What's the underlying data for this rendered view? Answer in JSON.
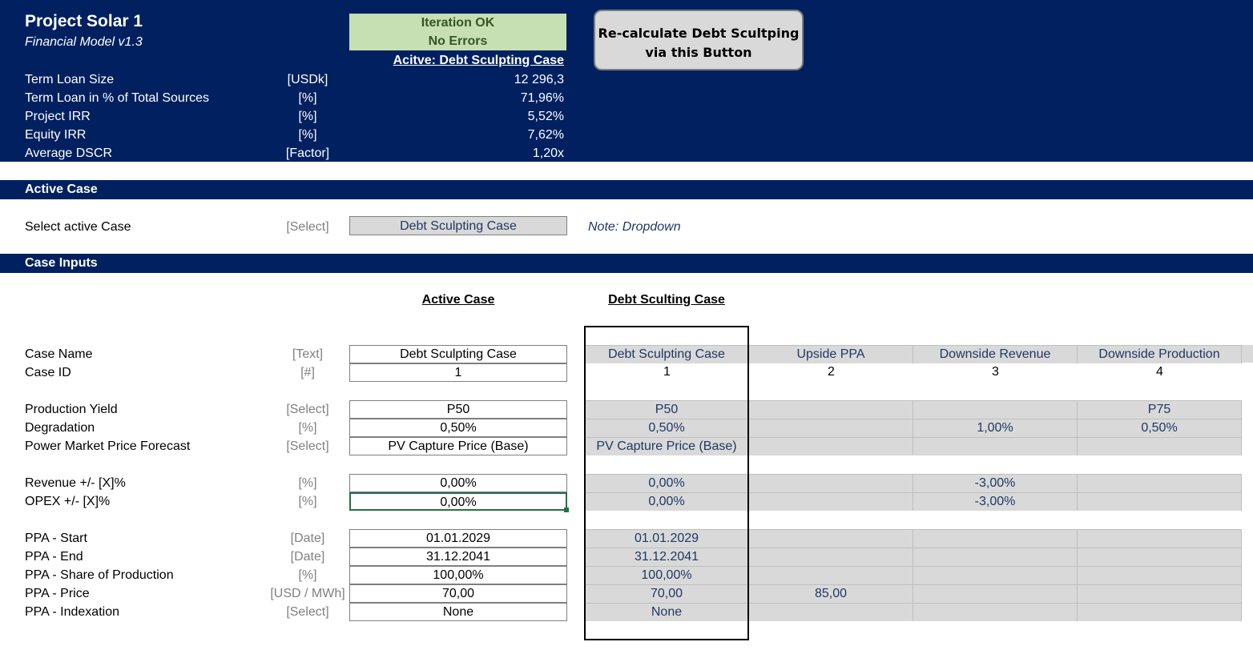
{
  "header": {
    "title": "Project Solar 1",
    "subtitle": "Financial Model v1.3",
    "status_line1": "Iteration OK",
    "status_line2": "No Errors",
    "active_label": "Acitve: Debt Sculpting Case",
    "button_label_line1": "Re-calculate Debt Scultping",
    "button_label_line2": "via this Button",
    "metrics": [
      {
        "label": "Term Loan Size",
        "unit": "[USDk]",
        "value": "12 296,3"
      },
      {
        "label": "Term Loan in % of Total Sources",
        "unit": "[%]",
        "value": "71,96%"
      },
      {
        "label": "Project IRR",
        "unit": "[%]",
        "value": "5,52%"
      },
      {
        "label": "Equity IRR",
        "unit": "[%]",
        "value": "7,62%"
      },
      {
        "label": "Average DSCR",
        "unit": "[Factor]",
        "value": "1,20x"
      }
    ]
  },
  "active_case": {
    "section_title": "Active Case",
    "select_label": "Select active Case",
    "select_unit": "[Select]",
    "selected_value": "Debt Sculpting Case",
    "note": "Note: Dropdown"
  },
  "case_inputs": {
    "section_title": "Case Inputs",
    "col_active_header": "Active Case",
    "col_debt_header": "Debt Sculting Case",
    "rows": [
      {
        "label": "Case Name",
        "unit": "[Text]",
        "active": "Debt Sculpting Case",
        "c1": "Debt Sculpting Case",
        "c2": "Upside PPA",
        "c3": "Downside Revenue",
        "c4": "Downside Production"
      },
      {
        "label": "Case ID",
        "unit": "[#]",
        "active": "1",
        "c1": "1",
        "c2": "2",
        "c3": "3",
        "c4": "4"
      },
      {
        "label": "Production Yield",
        "unit": "[Select]",
        "active": "P50",
        "c1": "P50",
        "c2": "",
        "c3": "",
        "c4": "P75"
      },
      {
        "label": "Degradation",
        "unit": "[%]",
        "active": "0,50%",
        "c1": "0,50%",
        "c2": "",
        "c3": "1,00%",
        "c4": "0,50%"
      },
      {
        "label": "Power Market Price Forecast",
        "unit": "[Select]",
        "active": "PV Capture Price (Base)",
        "c1": "PV Capture Price (Base)",
        "c2": "",
        "c3": "",
        "c4": ""
      },
      {
        "label": "Revenue +/- [X]%",
        "unit": "[%]",
        "active": "0,00%",
        "c1": "0,00%",
        "c2": "",
        "c3": "-3,00%",
        "c4": ""
      },
      {
        "label": "OPEX +/- [X]%",
        "unit": "[%]",
        "active": "0,00%",
        "c1": "0,00%",
        "c2": "",
        "c3": "-3,00%",
        "c4": ""
      },
      {
        "label": "PPA - Start",
        "unit": "[Date]",
        "active": "01.01.2029",
        "c1": "01.01.2029",
        "c2": "",
        "c3": "",
        "c4": ""
      },
      {
        "label": "PPA - End",
        "unit": "[Date]",
        "active": "31.12.2041",
        "c1": "31.12.2041",
        "c2": "",
        "c3": "",
        "c4": ""
      },
      {
        "label": "PPA - Share of Production",
        "unit": "[%]",
        "active": "100,00%",
        "c1": "100,00%",
        "c2": "",
        "c3": "",
        "c4": ""
      },
      {
        "label": "PPA - Price",
        "unit": "[USD / MWh]",
        "active": "70,00",
        "c1": "70,00",
        "c2": "85,00",
        "c3": "",
        "c4": ""
      },
      {
        "label": "PPA - Indexation",
        "unit": "[Select]",
        "active": "None",
        "c1": "None",
        "c2": "",
        "c3": "",
        "c4": ""
      }
    ]
  },
  "colors": {
    "navy": "#002060",
    "status_green": "#c6e0b4",
    "cell_gray": "#d9d9d9",
    "blue_text": "#1f3864"
  }
}
